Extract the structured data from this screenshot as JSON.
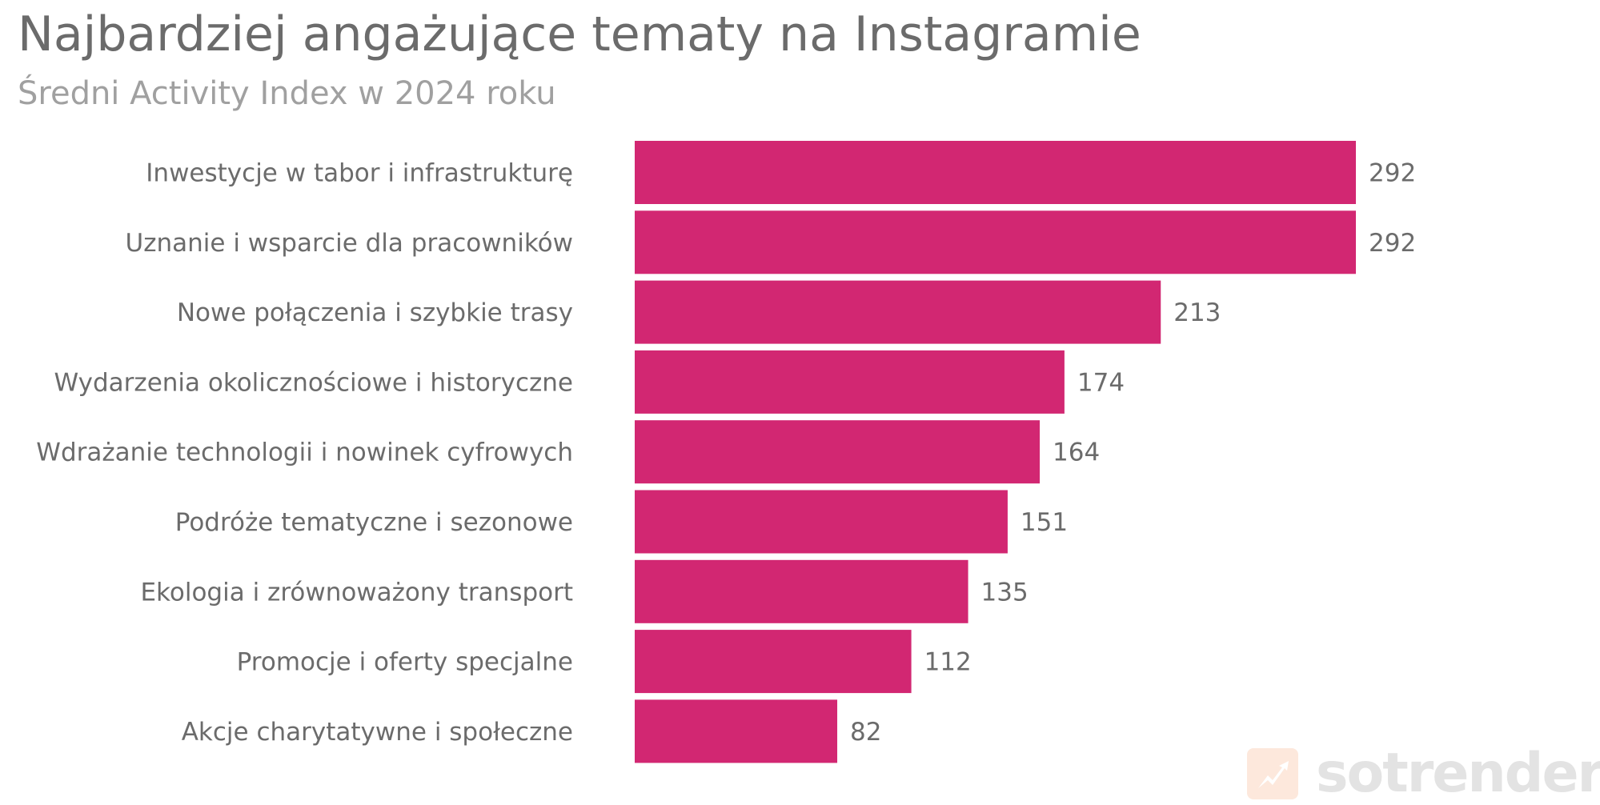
{
  "chart_data": {
    "type": "bar",
    "orientation": "horizontal",
    "title": "Najbardziej angażujące tematy na Instagramie",
    "subtitle": "Średni Activity Index w 2024 roku",
    "categories": [
      "Inwestycje w tabor i infrastrukturę",
      "Uznanie i wsparcie dla pracowników",
      "Nowe połączenia i szybkie trasy",
      "Wydarzenia okolicznościowe i historyczne",
      "Wdrażanie technologii i nowinek cyfrowych",
      "Podróże tematyczne i sezonowe",
      "Ekologia i zrównoważony transport",
      "Promocje i oferty specjalne",
      "Akcje charytatywne i społeczne"
    ],
    "values": [
      292,
      292,
      213,
      174,
      164,
      151,
      135,
      112,
      82
    ],
    "xlabel": "",
    "ylabel": "",
    "xlim": [
      0,
      292
    ],
    "grid": false,
    "bar_color": "#d22772"
  },
  "logo": {
    "text": "sotrender",
    "accent": "#fde8dc"
  }
}
